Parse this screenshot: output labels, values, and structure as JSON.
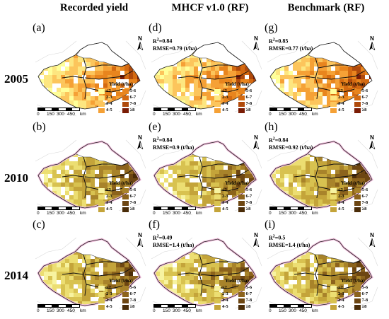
{
  "column_headers": [
    "Recorded yield",
    "MHCF v1.0 (RF)",
    "Benchmark (RF)"
  ],
  "row_headers": [
    "2005",
    "2010",
    "2014"
  ],
  "legend": {
    "title": "Yield (t/ha)",
    "classes": [
      "≤2",
      "2-3",
      "3-4",
      "4-5",
      "5-6",
      "6-7",
      "7-8",
      "≥8"
    ],
    "palette_2005": [
      "#ffff99",
      "#fde680",
      "#fcc55c",
      "#f5a136",
      "#e8851e",
      "#d46a11",
      "#b04a0b",
      "#7a1c05"
    ],
    "palette_other": [
      "#f7f3a0",
      "#ecde72",
      "#d8c250",
      "#c4a43a",
      "#a8832a",
      "#8c631c",
      "#6d4612",
      "#4a2c08"
    ]
  },
  "scale_bar": {
    "labels": [
      "0",
      "150",
      "300",
      "450"
    ],
    "unit": "km"
  },
  "north_arrow": {
    "letter": "N",
    "icon": "north-arrow-icon"
  },
  "panels": [
    {
      "id": "a",
      "label": "(a)",
      "year": "2005",
      "column": "Recorded yield",
      "stats": null
    },
    {
      "id": "d",
      "label": "(d)",
      "year": "2005",
      "column": "MHCF v1.0 (RF)",
      "stats": {
        "r2": "0.84",
        "rmse": "0.79 (t/ha)"
      }
    },
    {
      "id": "g",
      "label": "(g)",
      "year": "2005",
      "column": "Benchmark (RF)",
      "stats": {
        "r2": "0.85",
        "rmse": "0.77 (t/ha)"
      }
    },
    {
      "id": "b",
      "label": "(b)",
      "year": "2010",
      "column": "Recorded yield",
      "stats": null
    },
    {
      "id": "e",
      "label": "(e)",
      "year": "2010",
      "column": "MHCF v1.0 (RF)",
      "stats": {
        "r2": "0.84",
        "rmse": "0.9 (t/ha)"
      }
    },
    {
      "id": "h",
      "label": "(h)",
      "year": "2010",
      "column": "Benchmark (RF)",
      "stats": {
        "r2": "0.84",
        "rmse": "0.92 (t/ha)"
      }
    },
    {
      "id": "c",
      "label": "(c)",
      "year": "2014",
      "column": "Recorded yield",
      "stats": null
    },
    {
      "id": "f",
      "label": "(f)",
      "year": "2014",
      "column": "MHCF v1.0 (RF)",
      "stats": {
        "r2": "0.49",
        "rmse": "1.4 (t/ha)"
      }
    },
    {
      "id": "i",
      "label": "(i)",
      "year": "2014",
      "column": "Benchmark (RF)",
      "stats": {
        "r2": "0.5",
        "rmse": "1.4 (t/ha)"
      }
    }
  ]
}
